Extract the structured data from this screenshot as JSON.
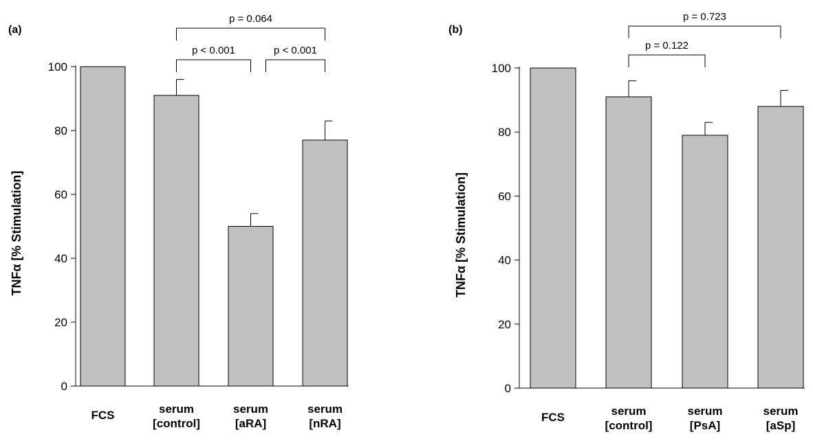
{
  "chart_data": [
    {
      "type": "bar",
      "panel": "(a)",
      "ylabel": "TNFα [% Stimulation]",
      "ylim": [
        0,
        100
      ],
      "yticks": [
        0,
        20,
        40,
        60,
        80,
        100
      ],
      "categories": [
        [
          "FCS"
        ],
        [
          "serum",
          "[control]"
        ],
        [
          "serum",
          "[aRA]"
        ],
        [
          "serum",
          "[nRA]"
        ]
      ],
      "values": [
        100,
        91,
        50,
        77
      ],
      "errors": [
        0,
        5,
        4,
        6
      ],
      "bar_color": "#c0c0c0",
      "comparisons": [
        {
          "from": 1,
          "to": 2,
          "label": "p < 0.001",
          "level": 0
        },
        {
          "from": 2,
          "to": 3,
          "label": "p < 0.001",
          "level": 0
        },
        {
          "from": 1,
          "to": 3,
          "label": "p = 0.064",
          "level": 1
        }
      ]
    },
    {
      "type": "bar",
      "panel": "(b)",
      "ylabel": "TNFα [% Stimulation]",
      "ylim": [
        0,
        100
      ],
      "yticks": [
        0,
        20,
        40,
        60,
        80,
        100
      ],
      "categories": [
        [
          "FCS"
        ],
        [
          "serum",
          "[control]"
        ],
        [
          "serum",
          "[PsA]"
        ],
        [
          "serum",
          "[aSp]"
        ]
      ],
      "values": [
        100,
        91,
        79,
        88
      ],
      "errors": [
        0,
        5,
        4,
        5
      ],
      "bar_color": "#c0c0c0",
      "comparisons": [
        {
          "from": 1,
          "to": 2,
          "label": "p = 0.122",
          "level": 0
        },
        {
          "from": 1,
          "to": 3,
          "label": "p = 0.723",
          "level": 1
        }
      ]
    }
  ]
}
